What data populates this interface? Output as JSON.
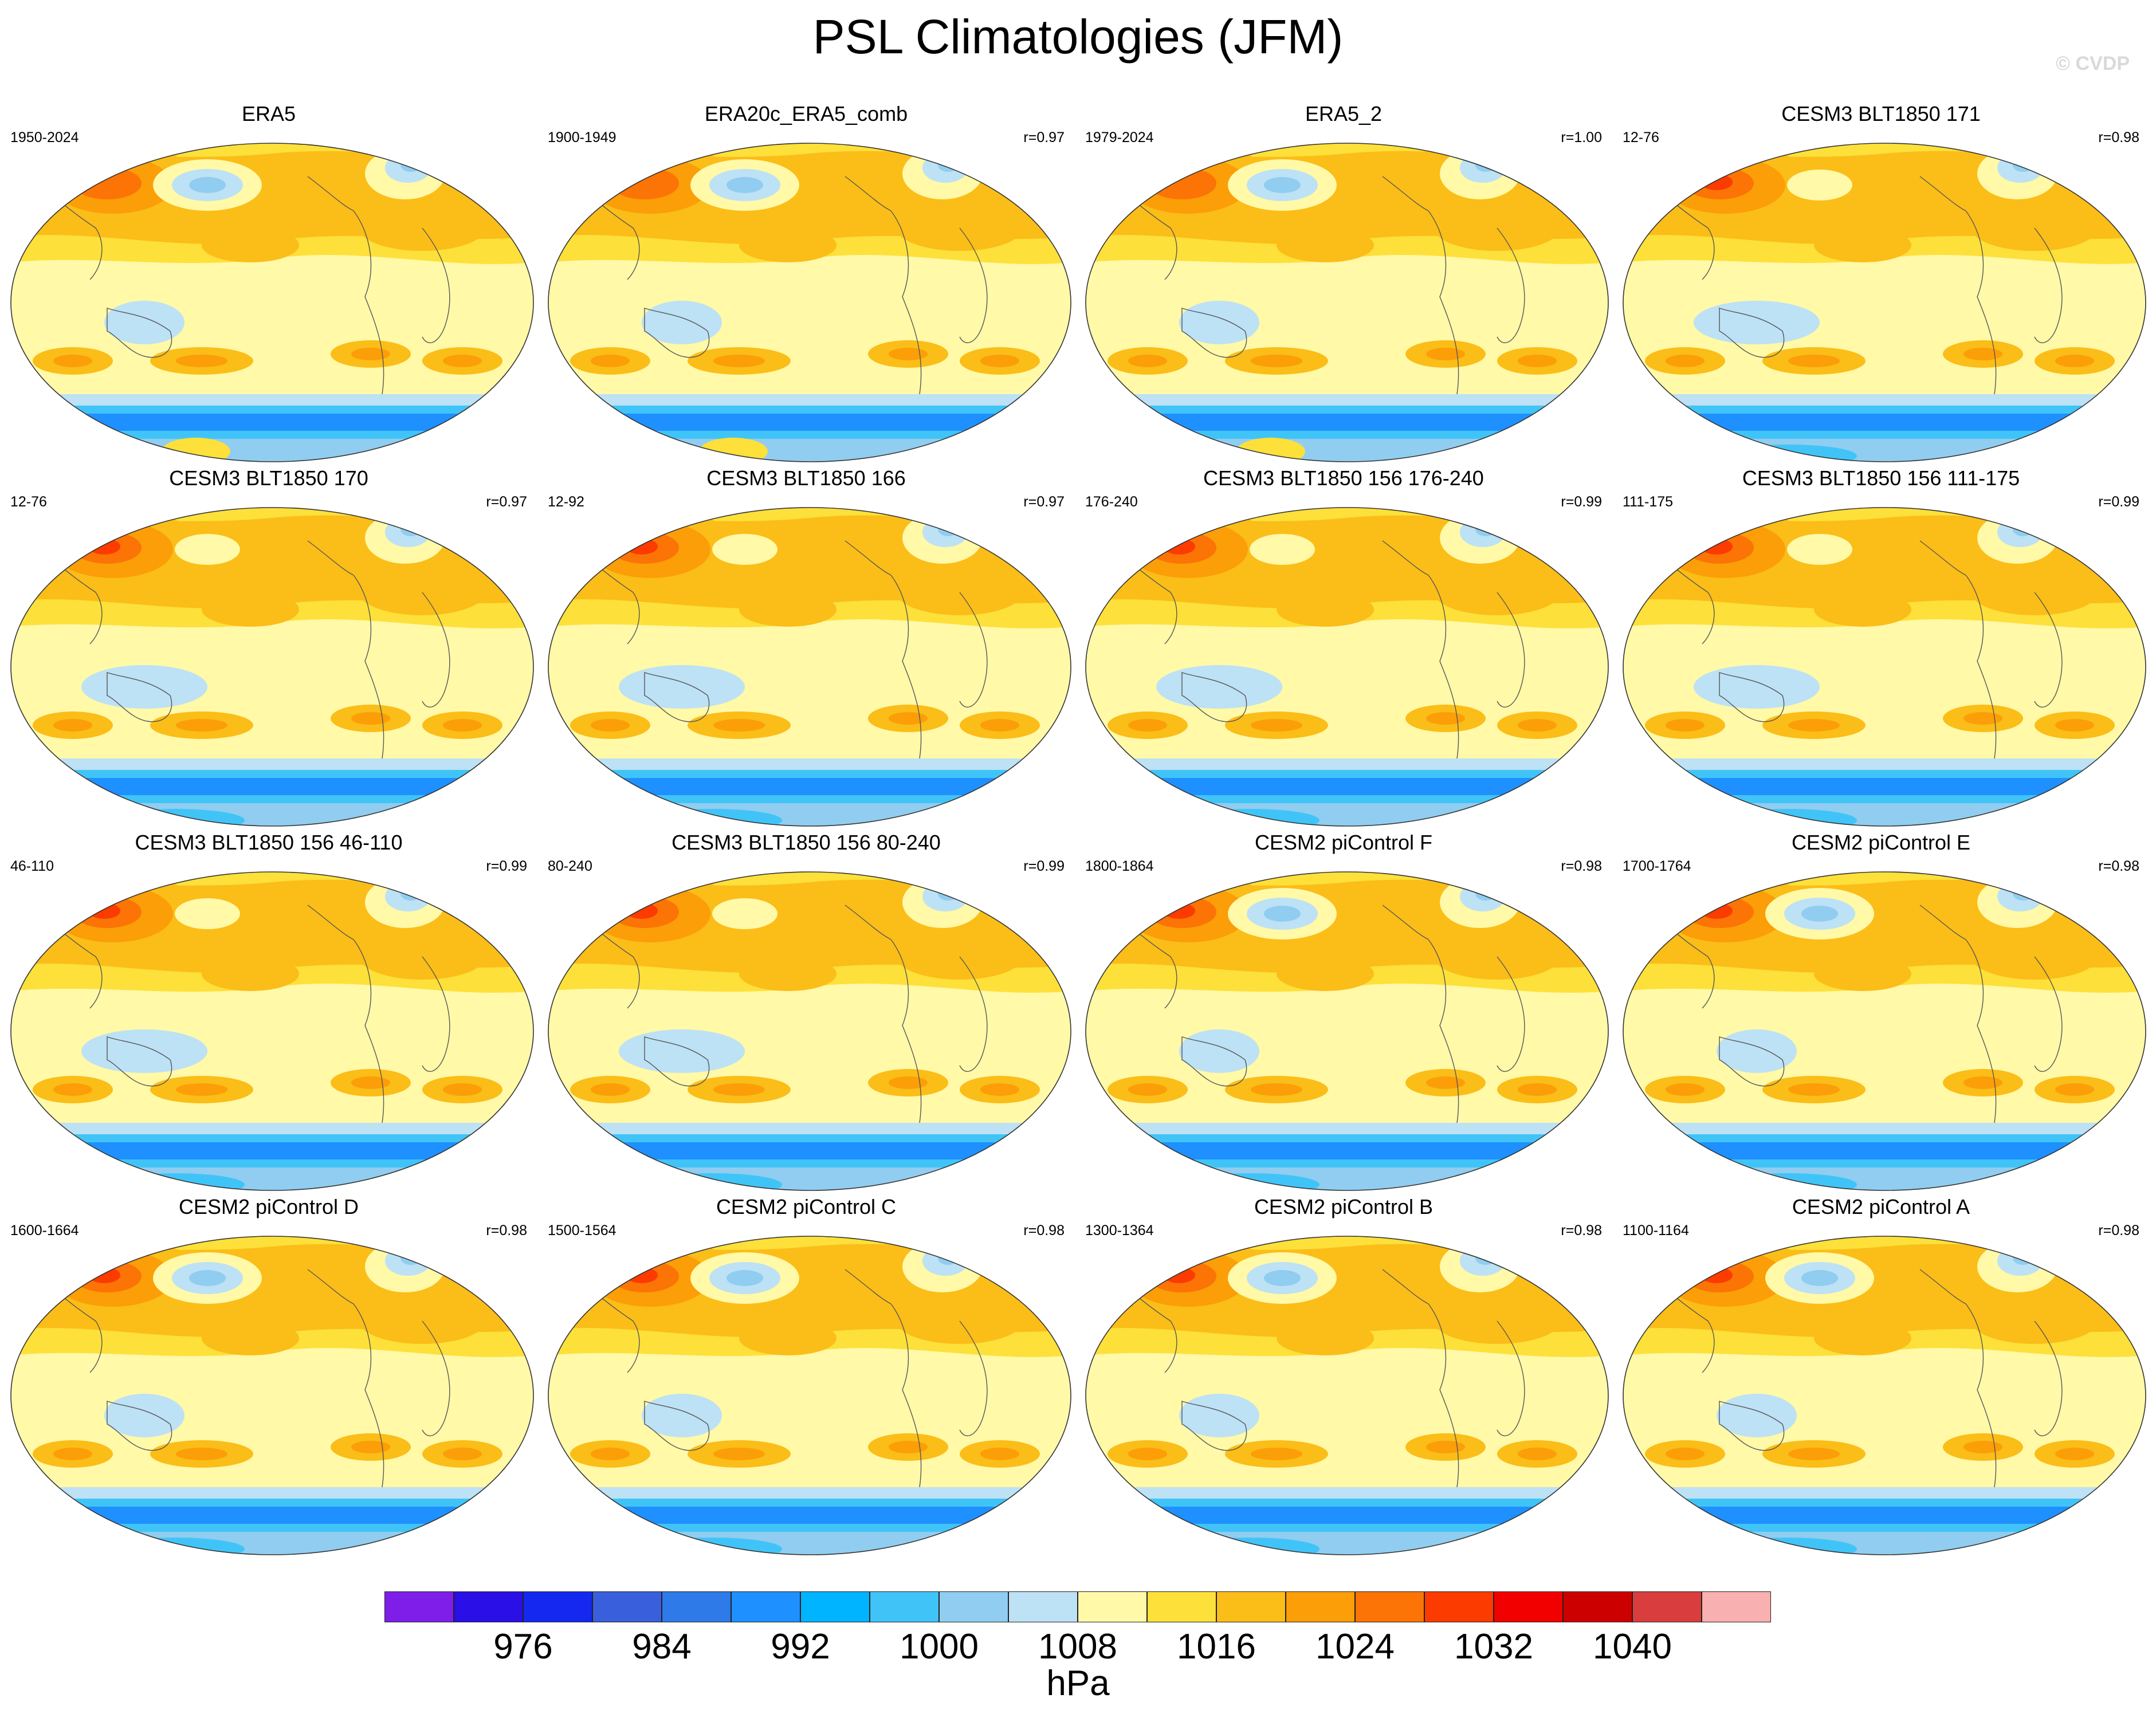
{
  "title": "PSL Climatologies (JFM)",
  "watermark": "© CVDP",
  "panels": [
    {
      "title": "ERA5",
      "years": "1950-2024",
      "r": "",
      "variant": "obs"
    },
    {
      "title": "ERA20c_ERA5_comb",
      "years": "1900-1949",
      "r": "r=0.97",
      "variant": "obs"
    },
    {
      "title": "ERA5_2",
      "years": "1979-2024",
      "r": "r=1.00",
      "variant": "obs"
    },
    {
      "title": "CESM3 BLT1850 171",
      "years": "12-76",
      "r": "r=0.98",
      "variant": "cesm3"
    },
    {
      "title": "CESM3 BLT1850 170",
      "years": "12-76",
      "r": "r=0.97",
      "variant": "cesm3"
    },
    {
      "title": "CESM3 BLT1850 166",
      "years": "12-92",
      "r": "r=0.97",
      "variant": "cesm3"
    },
    {
      "title": "CESM3 BLT1850 156 176-240",
      "years": "176-240",
      "r": "r=0.99",
      "variant": "cesm3"
    },
    {
      "title": "CESM3 BLT1850 156 111-175",
      "years": "111-175",
      "r": "r=0.99",
      "variant": "cesm3"
    },
    {
      "title": "CESM3 BLT1850 156 46-110",
      "years": "46-110",
      "r": "r=0.99",
      "variant": "cesm3"
    },
    {
      "title": "CESM3 BLT1850 156 80-240",
      "years": "80-240",
      "r": "r=0.99",
      "variant": "cesm3"
    },
    {
      "title": "CESM2 piControl F",
      "years": "1800-1864",
      "r": "r=0.98",
      "variant": "cesm2"
    },
    {
      "title": "CESM2 piControl E",
      "years": "1700-1764",
      "r": "r=0.98",
      "variant": "cesm2"
    },
    {
      "title": "CESM2 piControl D",
      "years": "1600-1664",
      "r": "r=0.98",
      "variant": "cesm2"
    },
    {
      "title": "CESM2 piControl C",
      "years": "1500-1564",
      "r": "r=0.98",
      "variant": "cesm2"
    },
    {
      "title": "CESM2 piControl B",
      "years": "1300-1364",
      "r": "r=0.98",
      "variant": "cesm2"
    },
    {
      "title": "CESM2 piControl A",
      "years": "1100-1164",
      "r": "r=0.98",
      "variant": "cesm2"
    }
  ],
  "colorbar": {
    "colors": [
      "#7e1ee8",
      "#2a0fe6",
      "#1428f0",
      "#3a5fdc",
      "#2e7ae8",
      "#1e90ff",
      "#00b4ff",
      "#40c4f8",
      "#90cdf0",
      "#bde1f5",
      "#fff9a8",
      "#fde03a",
      "#fbbd18",
      "#fb9e08",
      "#fb7405",
      "#fb3b00",
      "#f20000",
      "#cd0000",
      "#d93d3d",
      "#f8b0b0"
    ],
    "tick_labels": [
      "976",
      "984",
      "992",
      "1000",
      "1008",
      "1016",
      "1024",
      "1032",
      "1040"
    ],
    "unit": "hPa"
  }
}
